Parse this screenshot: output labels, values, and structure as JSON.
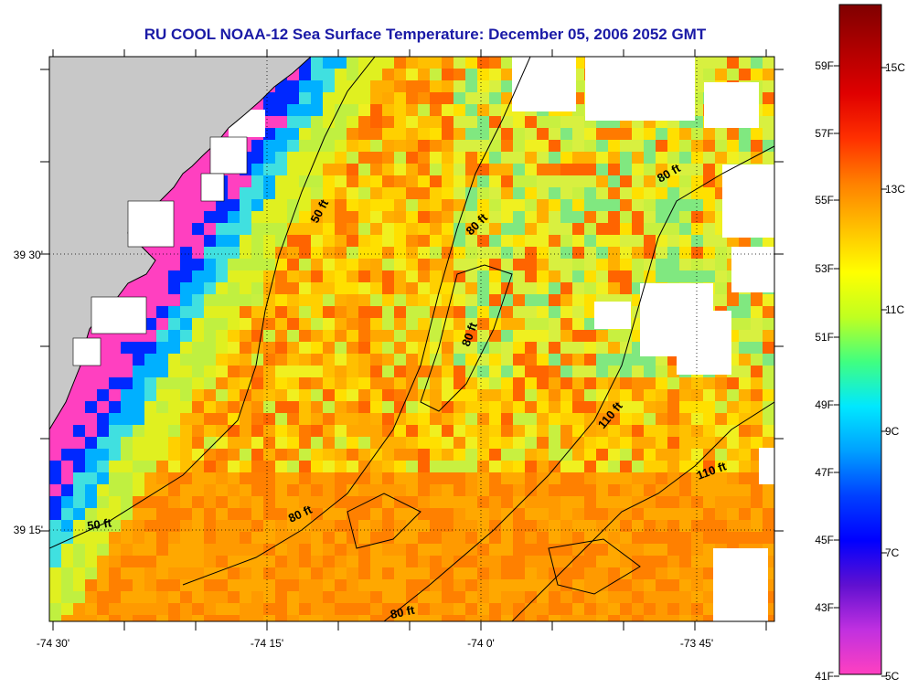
{
  "title": "RU COOL  NOAA-12  Sea Surface Temperature:  December 05, 2006 2052 GMT",
  "map": {
    "x_ticks": [
      "-74 30'",
      "-74 15'",
      "-74 0'",
      "-73 45'"
    ],
    "y_ticks": [
      "39 30'",
      "39 15'"
    ],
    "depth_labels": [
      "50 ft",
      "80 ft",
      "80 ft",
      "80 ft",
      "110 ft",
      "110 ft",
      "50 ft",
      "80 ft",
      "80 ft"
    ],
    "colors": {
      "land": "#c8c8c8",
      "cloud": "#ffffff"
    }
  },
  "colorbar": {
    "f_labels": [
      "59F",
      "57F",
      "55F",
      "53F",
      "51F",
      "49F",
      "47F",
      "45F",
      "43F",
      "41F"
    ],
    "c_labels": [
      "15C",
      "13C",
      "11C",
      "9C",
      "7C",
      "5C"
    ],
    "stops": [
      "#ff40c0",
      "#c030e0",
      "#6010d0",
      "#0000ff",
      "#0040ff",
      "#00a0ff",
      "#00e8ff",
      "#40ff80",
      "#c0ff20",
      "#ffff00",
      "#ffc000",
      "#ff8000",
      "#ff3000",
      "#e00000",
      "#b00000",
      "#800000"
    ]
  }
}
